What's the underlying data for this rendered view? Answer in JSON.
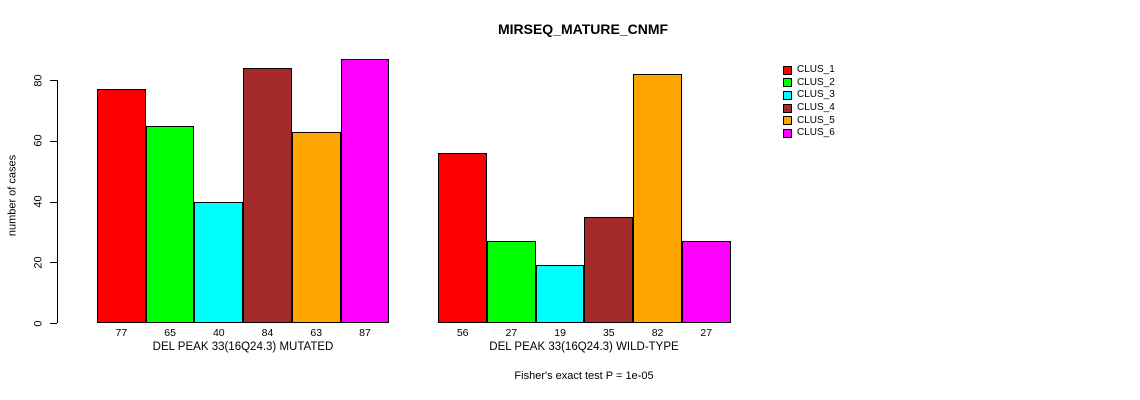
{
  "chart_data": {
    "type": "bar",
    "title": "MIRSEQ_MATURE_CNMF",
    "ylabel": "number of cases",
    "xlabel": "",
    "ylim": [
      0,
      80
    ],
    "yticks": [
      0,
      20,
      40,
      60,
      80
    ],
    "grid": false,
    "legend_position": "right-inside",
    "series": [
      {
        "name": "CLUS_1",
        "color": "#FF0000"
      },
      {
        "name": "CLUS_2",
        "color": "#00FF00"
      },
      {
        "name": "CLUS_3",
        "color": "#00FFFF"
      },
      {
        "name": "CLUS_4",
        "color": "#A52A2A"
      },
      {
        "name": "CLUS_5",
        "color": "#FFA500"
      },
      {
        "name": "CLUS_6",
        "color": "#FF00FF"
      }
    ],
    "groups": [
      {
        "label": "DEL PEAK 33(16Q24.3) MUTATED",
        "values": [
          77,
          65,
          40,
          84,
          63,
          87
        ]
      },
      {
        "label": "DEL PEAK 33(16Q24.3) WILD-TYPE",
        "values": [
          56,
          27,
          19,
          35,
          82,
          27
        ]
      }
    ],
    "caption": "Fisher's exact test P = 1e-05"
  }
}
